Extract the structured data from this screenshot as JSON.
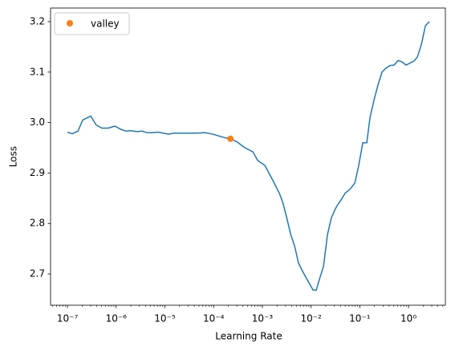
{
  "chart_data": {
    "type": "line",
    "xlabel": "Learning Rate",
    "ylabel": "Loss",
    "xscale": "log",
    "color": "#1f77b4",
    "x": [
      1e-07,
      1.26e-07,
      1.64e-07,
      2.06e-07,
      3e-07,
      3.9e-07,
      5.1e-07,
      6.9e-07,
      9.4e-07,
      1.22e-06,
      1.59e-06,
      2e-06,
      2.61e-06,
      3.4e-06,
      4.3e-06,
      5.6e-06,
      7.3e-06,
      9.1e-06,
      1.19e-05,
      1.55e-05,
      2.54e-05,
      4.49e-05,
      6.6e-05,
      9.6e-05,
      0.000169,
      0.000221,
      0.000299,
      0.00044,
      0.00064,
      0.0008,
      0.00113,
      0.00165,
      0.00223,
      0.0026,
      0.0031,
      0.0038,
      0.0046,
      0.0055,
      0.0067,
      0.0084,
      0.011,
      0.0128,
      0.0149,
      0.018,
      0.0217,
      0.0262,
      0.033,
      0.0414,
      0.05,
      0.063,
      0.079,
      0.095,
      0.115,
      0.139,
      0.162,
      0.196,
      0.237,
      0.286,
      0.346,
      0.418,
      0.506,
      0.611,
      0.739,
      0.893,
      1.08,
      1.3,
      1.52,
      1.84,
      2.22,
      2.68
    ],
    "values": [
      2.981,
      2.978,
      2.983,
      3.005,
      3.013,
      2.995,
      2.989,
      2.989,
      2.993,
      2.987,
      2.983,
      2.984,
      2.982,
      2.983,
      2.98,
      2.98,
      2.981,
      2.979,
      2.977,
      2.979,
      2.979,
      2.979,
      2.98,
      2.977,
      2.97,
      2.968,
      2.962,
      2.95,
      2.942,
      2.925,
      2.915,
      2.885,
      2.86,
      2.843,
      2.815,
      2.779,
      2.755,
      2.722,
      2.705,
      2.688,
      2.668,
      2.668,
      2.69,
      2.715,
      2.778,
      2.812,
      2.833,
      2.847,
      2.86,
      2.868,
      2.88,
      2.915,
      2.96,
      2.96,
      3.01,
      3.045,
      3.075,
      3.1,
      3.108,
      3.113,
      3.114,
      3.123,
      3.12,
      3.114,
      3.118,
      3.122,
      3.13,
      3.155,
      3.192,
      3.2
    ],
    "valley": {
      "name": "valley",
      "color": "#ff7f0e",
      "x": 0.000221,
      "y": 2.968
    },
    "legend": "upper left",
    "xlim": [
      4.5e-08,
      5.7
    ],
    "ylim": [
      2.638,
      3.227
    ],
    "xticks": [
      {
        "value": 1e-07,
        "label": "10⁻⁷"
      },
      {
        "value": 1e-06,
        "label": "10⁻⁶"
      },
      {
        "value": 1e-05,
        "label": "10⁻⁵"
      },
      {
        "value": 0.0001,
        "label": "10⁻⁴"
      },
      {
        "value": 0.001,
        "label": "10⁻³"
      },
      {
        "value": 0.01,
        "label": "10⁻²"
      },
      {
        "value": 0.1,
        "label": "10⁻¹"
      },
      {
        "value": 1,
        "label": "10⁰"
      }
    ],
    "yticks": [
      2.7,
      2.8,
      2.9,
      {
        "value": 3,
        "label": "3.0"
      },
      3.1,
      3.2
    ]
  }
}
